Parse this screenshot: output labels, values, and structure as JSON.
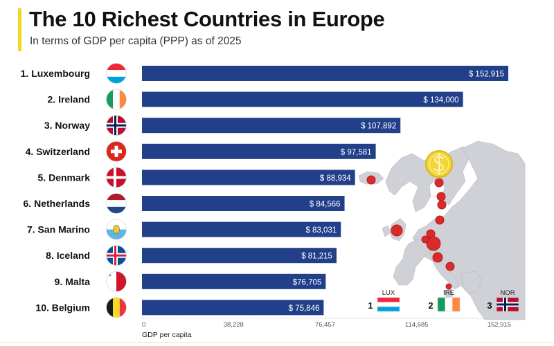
{
  "header": {
    "title": "The 10 Richest Countries in Europe",
    "subtitle": "In terms of GDP per capita (PPP) as of 2025"
  },
  "chart_data": {
    "type": "bar",
    "orientation": "horizontal",
    "title": "The 10 Richest Countries in Europe",
    "subtitle": "In terms of GDP per capita (PPP) as of 2025",
    "xlabel": "GDP per capita",
    "xlim": [
      0,
      152915
    ],
    "xticks": [
      "0",
      "38,228",
      "76,457",
      "114,685",
      "152,915"
    ],
    "xtick_values": [
      0,
      38228,
      76457,
      114685,
      152915
    ],
    "bar_color": "#223f8a",
    "categories": [
      {
        "rank": "1.",
        "name": "Luxembourg",
        "value": 152915,
        "label": "$ 152,915",
        "flag": "luxembourg-flag"
      },
      {
        "rank": "2.",
        "name": "Ireland",
        "value": 134000,
        "label": "$ 134,000",
        "flag": "ireland-flag"
      },
      {
        "rank": "3.",
        "name": "Norway",
        "value": 107892,
        "label": "$ 107,892",
        "flag": "norway-flag"
      },
      {
        "rank": "4.",
        "name": "Switzerland",
        "value": 97581,
        "label": "$ 97,581",
        "flag": "switzerland-flag"
      },
      {
        "rank": "5.",
        "name": "Denmark",
        "value": 88934,
        "label": "$ 88,934",
        "flag": "denmark-flag"
      },
      {
        "rank": "6.",
        "name": "Netherlands",
        "value": 84566,
        "label": "$ 84,566",
        "flag": "netherlands-flag"
      },
      {
        "rank": "7.",
        "name": "San Marino",
        "value": 83031,
        "label": "$ 83,031",
        "flag": "san-marino-flag"
      },
      {
        "rank": "8.",
        "name": "Iceland",
        "value": 81215,
        "label": "$ 81,215",
        "flag": "iceland-flag"
      },
      {
        "rank": "9.",
        "name": "Malta",
        "value": 76705,
        "label": "$76,705",
        "flag": "malta-flag"
      },
      {
        "rank": "10.",
        "name": "Belgium",
        "value": 75846,
        "label": "$ 75,846",
        "flag": "belgium-flag"
      }
    ],
    "podium": [
      {
        "place": "1",
        "code": "LUX",
        "flag": "luxembourg-flag"
      },
      {
        "place": "2",
        "code": "IRE",
        "flag": "ireland-flag"
      },
      {
        "place": "3",
        "code": "NOR",
        "flag": "norway-flag"
      }
    ],
    "map": {
      "marker_color": "#d92b2b",
      "land_color": "#cfd1d6",
      "coin_icon": "dollar-coin-icon"
    }
  }
}
